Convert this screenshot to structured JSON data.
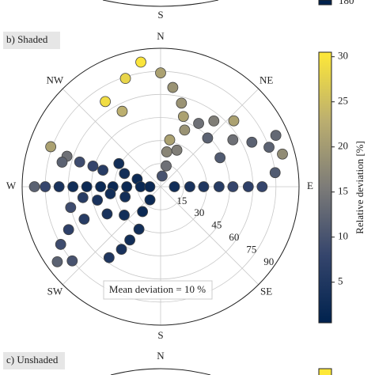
{
  "chart_data": {
    "type": "polar-scatter",
    "panel_label": "b) Shaded",
    "annotation": "Mean deviation = 10 %",
    "theta": [
      351,
      342,
      0,
      7,
      327,
      14,
      333,
      18,
      31,
      39,
      48,
      23,
      66,
      11,
      44,
      57,
      64,
      70,
      75,
      10,
      24,
      64,
      83,
      15,
      290,
      288,
      284,
      287,
      287,
      286,
      299,
      290,
      288,
      270,
      270,
      270,
      270,
      270,
      270,
      270,
      270,
      270,
      270,
      90,
      90,
      90,
      90,
      90,
      90,
      90,
      262,
      257,
      247,
      258,
      262,
      254,
      243,
      232,
      216,
      219,
      207,
      210,
      212,
      216,
      245,
      240,
      234,
      230,
      8
    ],
    "r": [
      82,
      74,
      74,
      65,
      66,
      56,
      55,
      48,
      48,
      55,
      64,
      40,
      82,
      31,
      44,
      56,
      66,
      75,
      82,
      23,
      26,
      43,
      75,
      14,
      76,
      64,
      66,
      55,
      46,
      39,
      31,
      25,
      16,
      82,
      75,
      66,
      57,
      48,
      39,
      31,
      22,
      13,
      7,
      9,
      19,
      28,
      38,
      47,
      57,
      66,
      51,
      60,
      54,
      42,
      33,
      24,
      39,
      30,
      20,
      11,
      31,
      40,
      48,
      57,
      66,
      75,
      83,
      75,
      7
    ],
    "c": [
      30,
      28,
      21,
      19,
      29,
      19,
      23,
      21,
      14,
      16,
      21,
      19,
      13,
      21,
      12,
      14,
      12,
      12,
      18,
      17,
      16,
      11,
      11,
      14,
      21,
      14,
      12,
      9,
      8,
      6,
      3,
      3,
      2,
      12,
      8,
      4,
      3,
      2,
      2,
      2,
      2,
      2,
      2,
      3,
      4,
      5,
      6,
      8,
      7,
      8,
      6,
      9,
      6,
      4,
      3,
      3,
      4,
      3,
      2,
      2,
      3,
      3,
      4,
      5,
      7,
      9,
      12,
      10,
      10
    ],
    "rlim": [
      0,
      90
    ],
    "rticks": [
      15,
      30,
      45,
      60,
      75,
      90
    ],
    "theta_ticks": [
      {
        "value": 0,
        "label": "N"
      },
      {
        "value": 45,
        "label": "NE"
      },
      {
        "value": 90,
        "label": "E"
      },
      {
        "value": 135,
        "label": "SE"
      },
      {
        "value": 180,
        "label": "S"
      },
      {
        "value": 225,
        "label": "SW"
      },
      {
        "value": 270,
        "label": "W"
      },
      {
        "value": 315,
        "label": "NW"
      }
    ],
    "grid": true,
    "colorbar": {
      "label": "Relative deviation [%]",
      "lim": [
        0.5,
        30.5
      ],
      "ticks": [
        5,
        10,
        15,
        20,
        25,
        30
      ],
      "colormap": [
        "#00224e",
        "#35456c",
        "#7c7b78",
        "#bcaf6f",
        "#fee838"
      ]
    }
  },
  "fragments": {
    "above": {
      "south_label": "S",
      "colorbar_tick": "180"
    },
    "below": {
      "panel_label": "c) Unshaded",
      "north_label": "N"
    }
  }
}
